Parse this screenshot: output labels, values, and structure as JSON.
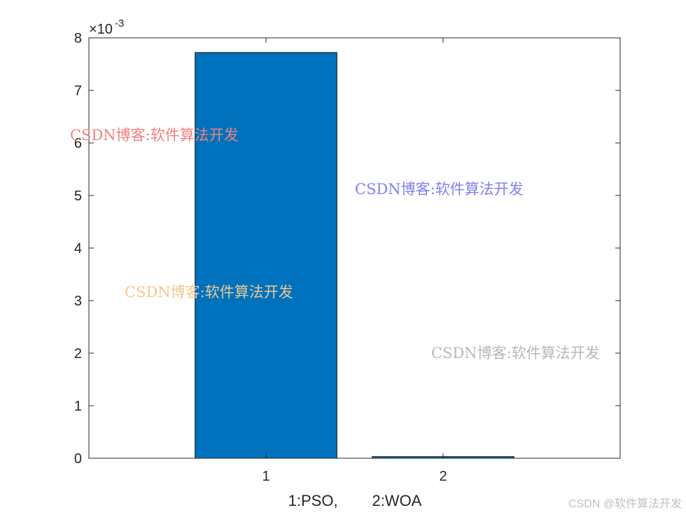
{
  "chart_data": {
    "type": "bar",
    "categories": [
      "1",
      "2"
    ],
    "values": [
      0.00772,
      3e-05
    ],
    "bar_color": "#0072BD",
    "edge_color": "#000000",
    "title": "",
    "xlabel": "1:PSO,        2:WOA",
    "ylabel": "",
    "ylim": [
      0,
      0.008
    ],
    "y_ticks": [
      "0",
      "1",
      "2",
      "3",
      "4",
      "5",
      "6",
      "7",
      "8"
    ],
    "y_exponent_base": "×10",
    "y_exponent_power": "-3",
    "grid": false,
    "legend": "none"
  },
  "watermarks": [
    {
      "text": "CSDN博客:软件算法开发",
      "color": "#f08080"
    },
    {
      "text": "CSDN博客:软件算法开发",
      "color": "#8080f0"
    },
    {
      "text": "CSDN博客:软件算法开发",
      "color": "#f0c890"
    },
    {
      "text": "CSDN博客:软件算法开发",
      "color": "#b8b8b8"
    }
  ],
  "credit": "CSDN @软件算法开发"
}
